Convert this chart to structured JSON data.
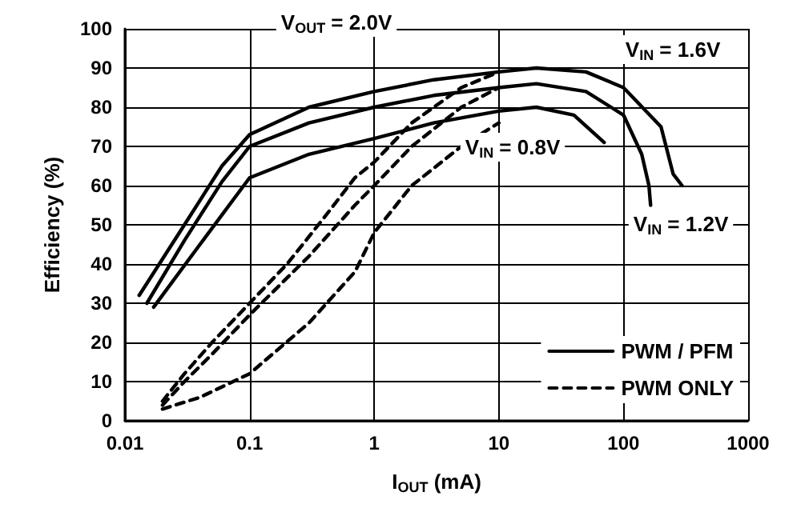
{
  "chart_data": {
    "type": "line",
    "xlabel": "I$_{OUT}$ (mA)",
    "ylabel": "Efficiency (%)",
    "log": "x",
    "xlim": [
      0.01,
      1000
    ],
    "xticks": [
      0.01,
      0.1,
      1,
      10,
      100,
      1000
    ],
    "ylim": [
      0,
      100
    ],
    "yticks": [
      0,
      10,
      20,
      30,
      40,
      50,
      60,
      70,
      80,
      90,
      100
    ],
    "grid": true,
    "legend": "bottom right",
    "marker": "none",
    "series": [
      {
        "name": "PWM / PFM",
        "color": "#000000",
        "line_style": "solid",
        "x": [
          0.013,
          0.03,
          0.06,
          0.1,
          0.3,
          1,
          3,
          10,
          20,
          50,
          100,
          200,
          250,
          295
        ],
        "values": [
          32,
          50,
          65,
          73,
          80,
          84,
          87,
          89,
          90,
          89,
          85,
          75,
          63,
          60
        ]
      },
      {
        "color": "#000000",
        "line_style": "solid",
        "x": [
          0.015,
          0.03,
          0.06,
          0.1,
          0.3,
          1,
          3,
          10,
          20,
          50,
          100,
          140,
          160,
          165
        ],
        "values": [
          30,
          46,
          61,
          70,
          76,
          80,
          83,
          85,
          86,
          84,
          78,
          68,
          60,
          55
        ]
      },
      {
        "color": "#000000",
        "line_style": "solid",
        "x": [
          0.017,
          0.04,
          0.1,
          0.3,
          1,
          3,
          10,
          20,
          40,
          70
        ],
        "values": [
          29,
          45,
          62,
          68,
          72,
          76,
          79,
          80,
          78,
          71
        ]
      },
      {
        "name": "PWM ONLY",
        "color": "#000000",
        "line_style": "dashed",
        "x": [
          0.02,
          0.03,
          0.05,
          0.1,
          0.2,
          0.4,
          0.7,
          1,
          2,
          5,
          10
        ],
        "values": [
          5,
          12,
          20,
          30,
          40,
          52,
          62,
          66,
          76,
          85,
          89
        ]
      },
      {
        "color": "#000000",
        "line_style": "dashed",
        "x": [
          0.02,
          0.03,
          0.05,
          0.1,
          0.3,
          0.7,
          1,
          2,
          5,
          10
        ],
        "values": [
          4,
          10,
          17,
          27,
          42,
          55,
          60,
          70,
          80,
          85
        ]
      },
      {
        "color": "#000000",
        "line_style": "dashed",
        "x": [
          0.02,
          0.04,
          0.1,
          0.3,
          0.7,
          1,
          2,
          5,
          10
        ],
        "values": [
          3,
          6,
          12,
          25,
          38,
          48,
          60,
          70,
          76
        ]
      }
    ],
    "annotations": [
      "V$_{OUT}$ = 2.0V",
      "V$_{IN}$ = 1.6V",
      "V$_{IN}$ = 0.8V",
      "V$_{IN}$ = 1.2V"
    ]
  }
}
